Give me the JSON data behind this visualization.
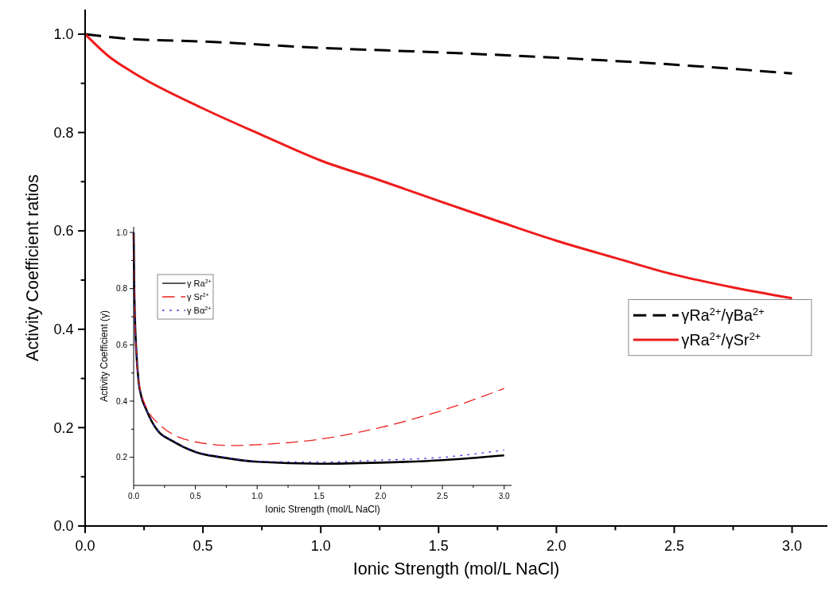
{
  "chart_data": [
    {
      "type": "line",
      "xlabel": "Ionic Strength (mol/L NaCl)",
      "ylabel": "Activity Coefficient ratios",
      "xlim": [
        0,
        3.15
      ],
      "ylim": [
        0,
        1.05
      ],
      "xticks": [
        {
          "value": 0,
          "label": "0.0"
        },
        {
          "value": 0.25,
          "label": null
        },
        {
          "value": 0.5,
          "label": "0.5"
        },
        {
          "value": 0.75,
          "label": null
        },
        {
          "value": 1,
          "label": "1.0"
        },
        {
          "value": 1.25,
          "label": null
        },
        {
          "value": 1.5,
          "label": "1.5"
        },
        {
          "value": 1.75,
          "label": null
        },
        {
          "value": 2,
          "label": "2.0"
        },
        {
          "value": 2.25,
          "label": null
        },
        {
          "value": 2.5,
          "label": "2.5"
        },
        {
          "value": 2.75,
          "label": null
        },
        {
          "value": 3,
          "label": "3.0"
        }
      ],
      "yticks": [
        {
          "value": 0,
          "label": "0.0"
        },
        {
          "value": 0.1,
          "label": null
        },
        {
          "value": 0.2,
          "label": "0.2"
        },
        {
          "value": 0.3,
          "label": null
        },
        {
          "value": 0.4,
          "label": "0.4"
        },
        {
          "value": 0.5,
          "label": null
        },
        {
          "value": 0.6,
          "label": "0.6"
        },
        {
          "value": 0.7,
          "label": null
        },
        {
          "value": 0.8,
          "label": "0.8"
        },
        {
          "value": 0.9,
          "label": null
        },
        {
          "value": 1,
          "label": "1.0"
        }
      ],
      "legend": "right",
      "grid": false,
      "marker": "none",
      "series": [
        {
          "name": "γRa$^{2+}$/γBa$^{2+}$",
          "color": "#000000",
          "line_style": "dashed",
          "x": [
            0,
            0.2,
            0.5,
            1,
            1.5,
            2,
            2.5,
            3
          ],
          "values": [
            1,
            0.99,
            0.985,
            0.972,
            0.963,
            0.952,
            0.938,
            0.92
          ]
        },
        {
          "name": "γRa$^{2+}$/γSr$^{2+}$",
          "color": "#ee1c1c",
          "line_style": "solid",
          "x": [
            0,
            0.1,
            0.2,
            0.5,
            0.75,
            1,
            1.25,
            1.5,
            1.75,
            2,
            2.25,
            2.5,
            2.75,
            3
          ],
          "values": [
            1,
            0.955,
            0.923,
            0.849,
            0.795,
            0.743,
            0.703,
            0.661,
            0.62,
            0.58,
            0.545,
            0.511,
            0.485,
            0.463
          ]
        }
      ]
    },
    {
      "type": "line",
      "xlabel": "Ionic Strength (mol/L NaCl)",
      "ylabel": "Activity Coefficient (γ)",
      "xlim": [
        0,
        3.06
      ],
      "ylim": [
        0.1,
        1.02
      ],
      "xticks": [
        {
          "value": 0,
          "label": "0.0"
        },
        {
          "value": 0.25,
          "label": null
        },
        {
          "value": 0.5,
          "label": "0.5"
        },
        {
          "value": 0.75,
          "label": null
        },
        {
          "value": 1,
          "label": "1.0"
        },
        {
          "value": 1.25,
          "label": null
        },
        {
          "value": 1.5,
          "label": "1.5"
        },
        {
          "value": 1.75,
          "label": null
        },
        {
          "value": 2,
          "label": "2.0"
        },
        {
          "value": 2.25,
          "label": null
        },
        {
          "value": 2.5,
          "label": "2.5"
        },
        {
          "value": 2.75,
          "label": null
        },
        {
          "value": 3,
          "label": "3.0"
        }
      ],
      "yticks": [
        {
          "value": 0.2,
          "label": "0.2"
        },
        {
          "value": 0.3,
          "label": null
        },
        {
          "value": 0.4,
          "label": "0.4"
        },
        {
          "value": 0.5,
          "label": null
        },
        {
          "value": 0.6,
          "label": "0.6"
        },
        {
          "value": 0.7,
          "label": null
        },
        {
          "value": 0.8,
          "label": "0.8"
        },
        {
          "value": 0.9,
          "label": null
        },
        {
          "value": 1,
          "label": "1.0"
        }
      ],
      "legend": "top left",
      "grid": false,
      "marker": "none",
      "series": [
        {
          "name": "γ Ra$^{2+}$",
          "color": "#000000",
          "line_style": "solid",
          "x": [
            0,
            0.005,
            0.01,
            0.02,
            0.04,
            0.06,
            0.1,
            0.15,
            0.2,
            0.31,
            0.5,
            0.74,
            1,
            1.5,
            2,
            2.5,
            3
          ],
          "values": [
            1,
            0.8,
            0.7,
            0.59,
            0.47,
            0.42,
            0.372,
            0.325,
            0.292,
            0.259,
            0.219,
            0.198,
            0.184,
            0.177,
            0.181,
            0.19,
            0.207
          ]
        },
        {
          "name": "γ Sr$^{2+}$",
          "color": "#ee2222",
          "line_style": "dashed",
          "x": [
            0,
            0.005,
            0.01,
            0.02,
            0.04,
            0.06,
            0.1,
            0.2,
            0.5,
            0.8,
            1,
            1.5,
            2,
            2.5,
            3
          ],
          "values": [
            1,
            0.8,
            0.7,
            0.59,
            0.475,
            0.43,
            0.38,
            0.32,
            0.255,
            0.242,
            0.245,
            0.264,
            0.306,
            0.367,
            0.445
          ]
        },
        {
          "name": "γ Bα$^{2+}$",
          "color": "#3333ee",
          "line_style": "dotted",
          "x": [
            0,
            0.005,
            0.01,
            0.02,
            0.04,
            0.06,
            0.1,
            0.15,
            0.2,
            0.31,
            0.5,
            0.74,
            1,
            1.5,
            2,
            2.5,
            3
          ],
          "values": [
            1,
            0.8,
            0.7,
            0.59,
            0.47,
            0.42,
            0.372,
            0.325,
            0.293,
            0.26,
            0.221,
            0.2,
            0.186,
            0.183,
            0.19,
            0.2,
            0.226
          ]
        }
      ]
    }
  ]
}
